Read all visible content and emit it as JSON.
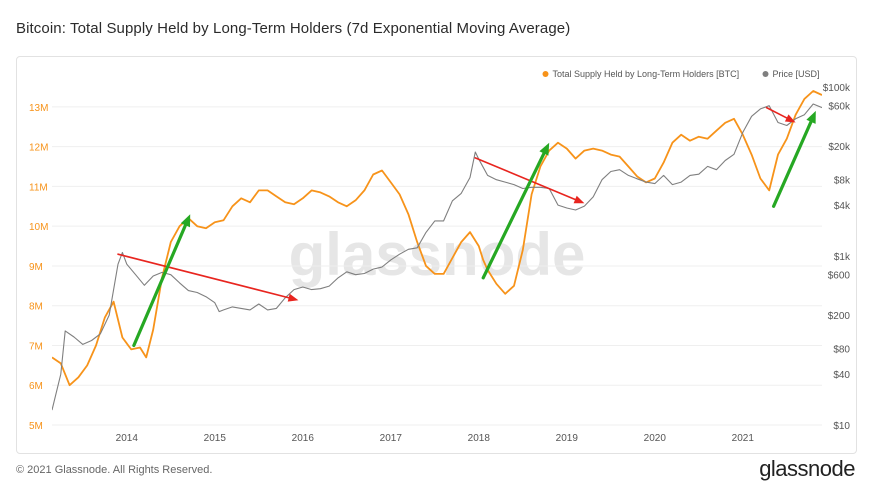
{
  "title": "Bitcoin: Total Supply Held by Long-Term Holders (7d Exponential Moving Average)",
  "footer": {
    "copyright": "© 2021 Glassnode. All Rights Reserved.",
    "logo": "glassnode"
  },
  "watermark": "glassnode",
  "chart_data": {
    "type": "line",
    "title": "Bitcoin: Total Supply Held by Long-Term Holders (7d Exponential Moving Average)",
    "legend": [
      {
        "label": "Total Supply Held by Long-Term Holders [BTC]",
        "color": "#f7931a"
      },
      {
        "label": "Price [USD]",
        "color": "#7f7f7f"
      }
    ],
    "legend_position": "top-right",
    "x_range": [
      2013.15,
      2021.9
    ],
    "x_ticks": [
      {
        "value": 2014,
        "label": "2014"
      },
      {
        "value": 2015,
        "label": "2015"
      },
      {
        "value": 2016,
        "label": "2016"
      },
      {
        "value": 2017,
        "label": "2017"
      },
      {
        "value": 2018,
        "label": "2018"
      },
      {
        "value": 2019,
        "label": "2019"
      },
      {
        "value": 2020,
        "label": "2020"
      },
      {
        "value": 2021,
        "label": "2021"
      }
    ],
    "y_left": {
      "range": [
        5,
        13.5
      ],
      "unit": "M",
      "color": "#f7931a",
      "ticks": [
        {
          "value": 5,
          "label": "5M"
        },
        {
          "value": 6,
          "label": "6M"
        },
        {
          "value": 7,
          "label": "7M"
        },
        {
          "value": 8,
          "label": "8M"
        },
        {
          "value": 9,
          "label": "9M"
        },
        {
          "value": 10,
          "label": "10M"
        },
        {
          "value": 11,
          "label": "11M"
        },
        {
          "value": 12,
          "label": "12M"
        },
        {
          "value": 13,
          "label": "13M"
        }
      ]
    },
    "y_right": {
      "scale": "log",
      "range": [
        10,
        100000
      ],
      "ticks": [
        {
          "value": 10,
          "label": "$10"
        },
        {
          "value": 40,
          "label": "$40"
        },
        {
          "value": 80,
          "label": "$80"
        },
        {
          "value": 200,
          "label": "$200"
        },
        {
          "value": 600,
          "label": "$600"
        },
        {
          "value": 1000,
          "label": "$1k"
        },
        {
          "value": 4000,
          "label": "$4k"
        },
        {
          "value": 8000,
          "label": "$8k"
        },
        {
          "value": 20000,
          "label": "$20k"
        },
        {
          "value": 60000,
          "label": "$60k"
        },
        {
          "value": 100000,
          "label": "$100k"
        }
      ]
    },
    "series": [
      {
        "name": "Total Supply Held by Long-Term Holders [BTC]",
        "axis": "left",
        "color": "#f7931a",
        "x": [
          2013.15,
          2013.25,
          2013.35,
          2013.45,
          2013.55,
          2013.65,
          2013.75,
          2013.85,
          2013.95,
          2014.05,
          2014.15,
          2014.22,
          2014.3,
          2014.4,
          2014.5,
          2014.6,
          2014.7,
          2014.8,
          2014.9,
          2015.0,
          2015.1,
          2015.2,
          2015.3,
          2015.4,
          2015.5,
          2015.6,
          2015.7,
          2015.8,
          2015.9,
          2016.0,
          2016.1,
          2016.2,
          2016.3,
          2016.4,
          2016.5,
          2016.6,
          2016.7,
          2016.8,
          2016.9,
          2017.0,
          2017.1,
          2017.2,
          2017.3,
          2017.4,
          2017.5,
          2017.6,
          2017.7,
          2017.8,
          2017.9,
          2018.0,
          2018.05,
          2018.1,
          2018.2,
          2018.3,
          2018.4,
          2018.5,
          2018.6,
          2018.7,
          2018.8,
          2018.9,
          2019.0,
          2019.1,
          2019.2,
          2019.3,
          2019.4,
          2019.5,
          2019.6,
          2019.7,
          2019.8,
          2019.9,
          2020.0,
          2020.1,
          2020.2,
          2020.3,
          2020.4,
          2020.5,
          2020.6,
          2020.7,
          2020.8,
          2020.9,
          2021.0,
          2021.1,
          2021.2,
          2021.3,
          2021.4,
          2021.5,
          2021.6,
          2021.7,
          2021.8,
          2021.9
        ],
        "values": [
          6.7,
          6.55,
          6.0,
          6.2,
          6.5,
          7.0,
          7.7,
          8.1,
          7.2,
          6.9,
          6.95,
          6.7,
          7.4,
          8.7,
          9.6,
          10.0,
          10.2,
          10.0,
          9.95,
          10.1,
          10.15,
          10.5,
          10.7,
          10.6,
          10.9,
          10.9,
          10.75,
          10.6,
          10.55,
          10.7,
          10.9,
          10.85,
          10.75,
          10.6,
          10.5,
          10.65,
          10.9,
          11.3,
          11.4,
          11.1,
          10.8,
          10.3,
          9.6,
          9.0,
          8.8,
          8.8,
          9.2,
          9.6,
          9.85,
          9.5,
          9.15,
          8.9,
          8.55,
          8.3,
          8.5,
          9.4,
          10.8,
          11.5,
          11.9,
          12.1,
          11.95,
          11.7,
          11.9,
          11.95,
          11.9,
          11.8,
          11.75,
          11.5,
          11.25,
          11.1,
          11.2,
          11.6,
          12.1,
          12.3,
          12.15,
          12.25,
          12.2,
          12.4,
          12.6,
          12.7,
          12.3,
          11.8,
          11.2,
          10.9,
          11.8,
          12.2,
          12.8,
          13.2,
          13.4,
          13.3
        ]
      },
      {
        "name": "Price [USD]",
        "axis": "right",
        "color": "#7f7f7f",
        "x": [
          2013.15,
          2013.25,
          2013.3,
          2013.4,
          2013.5,
          2013.6,
          2013.7,
          2013.8,
          2013.9,
          2013.95,
          2014.0,
          2014.1,
          2014.2,
          2014.3,
          2014.4,
          2014.5,
          2014.6,
          2014.7,
          2014.8,
          2014.9,
          2015.0,
          2015.05,
          2015.1,
          2015.2,
          2015.3,
          2015.4,
          2015.5,
          2015.6,
          2015.7,
          2015.8,
          2015.9,
          2016.0,
          2016.1,
          2016.2,
          2016.3,
          2016.4,
          2016.5,
          2016.6,
          2016.7,
          2016.8,
          2016.9,
          2017.0,
          2017.1,
          2017.2,
          2017.3,
          2017.4,
          2017.5,
          2017.6,
          2017.7,
          2017.8,
          2017.9,
          2017.96,
          2018.0,
          2018.1,
          2018.2,
          2018.3,
          2018.4,
          2018.5,
          2018.6,
          2018.7,
          2018.8,
          2018.9,
          2019.0,
          2019.1,
          2019.2,
          2019.3,
          2019.4,
          2019.5,
          2019.6,
          2019.7,
          2019.8,
          2019.9,
          2020.0,
          2020.1,
          2020.2,
          2020.3,
          2020.4,
          2020.5,
          2020.6,
          2020.7,
          2020.8,
          2020.9,
          2021.0,
          2021.1,
          2021.2,
          2021.3,
          2021.4,
          2021.5,
          2021.6,
          2021.7,
          2021.8,
          2021.9
        ],
        "values": [
          15,
          40,
          130,
          110,
          90,
          100,
          120,
          200,
          800,
          1100,
          800,
          600,
          450,
          580,
          640,
          600,
          480,
          390,
          370,
          330,
          280,
          220,
          230,
          250,
          240,
          230,
          270,
          230,
          240,
          320,
          400,
          430,
          400,
          410,
          440,
          550,
          650,
          600,
          620,
          700,
          740,
          900,
          1050,
          1200,
          1250,
          1900,
          2600,
          2600,
          4500,
          5500,
          8500,
          17000,
          14000,
          9000,
          8000,
          7500,
          7000,
          6300,
          6500,
          6500,
          6300,
          4000,
          3700,
          3500,
          3900,
          5000,
          8000,
          10000,
          10500,
          9000,
          8200,
          7500,
          7200,
          9000,
          7000,
          7500,
          9000,
          9300,
          11500,
          10500,
          13500,
          16000,
          29000,
          45000,
          55000,
          60000,
          38000,
          35000,
          42000,
          47000,
          63000,
          57000
        ]
      }
    ],
    "annotations": [
      {
        "type": "red-arrow",
        "from": [
          2013.9,
          1050
        ],
        "to": [
          2015.95,
          300
        ]
      },
      {
        "type": "green-arrow",
        "from": [
          2014.08,
          7.0
        ],
        "to": [
          2014.72,
          10.3
        ]
      },
      {
        "type": "red-arrow",
        "from": [
          2017.96,
          14500
        ],
        "to": [
          2019.2,
          4200
        ]
      },
      {
        "type": "green-arrow",
        "from": [
          2018.05,
          8.7
        ],
        "to": [
          2018.8,
          12.1
        ]
      },
      {
        "type": "red-arrow",
        "from": [
          2021.27,
          57000
        ],
        "to": [
          2021.6,
          38000
        ]
      },
      {
        "type": "green-arrow",
        "from": [
          2021.35,
          10.5
        ],
        "to": [
          2021.83,
          12.9
        ]
      }
    ]
  }
}
